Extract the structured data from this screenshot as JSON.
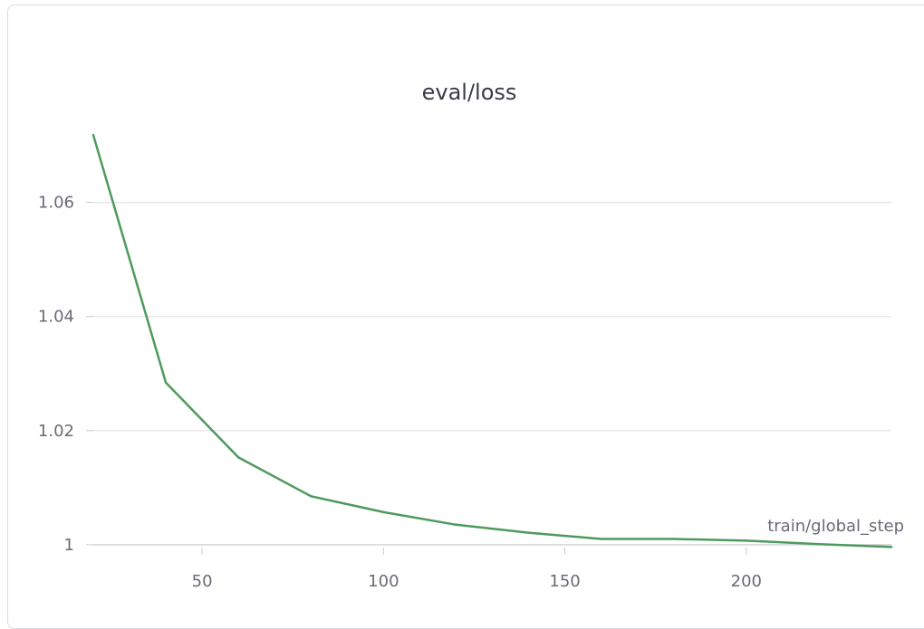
{
  "chart_data": {
    "type": "line",
    "title": "eval/loss",
    "xlabel": "train/global_step",
    "ylabel": "",
    "x_ticks": [
      "50",
      "100",
      "150",
      "200"
    ],
    "y_ticks": [
      "1",
      "1.02",
      "1.04",
      "1.06"
    ],
    "xlim": [
      20,
      240
    ],
    "ylim": [
      0.9995,
      1.072
    ],
    "grid": true,
    "legend": "none",
    "series": [
      {
        "color": "#4e9a5c",
        "x": [
          20,
          40,
          60,
          80,
          100,
          120,
          140,
          160,
          180,
          200,
          220,
          240
        ],
        "y": [
          1.0718,
          1.0284,
          1.0153,
          1.0085,
          1.0057,
          1.0035,
          1.0021,
          1.001,
          1.001,
          1.0007,
          1.0001,
          0.9996
        ]
      }
    ]
  },
  "colors": {
    "grid": "#e4e4e7",
    "axis": "#c9cbd1",
    "line": "#4e9a5c"
  }
}
